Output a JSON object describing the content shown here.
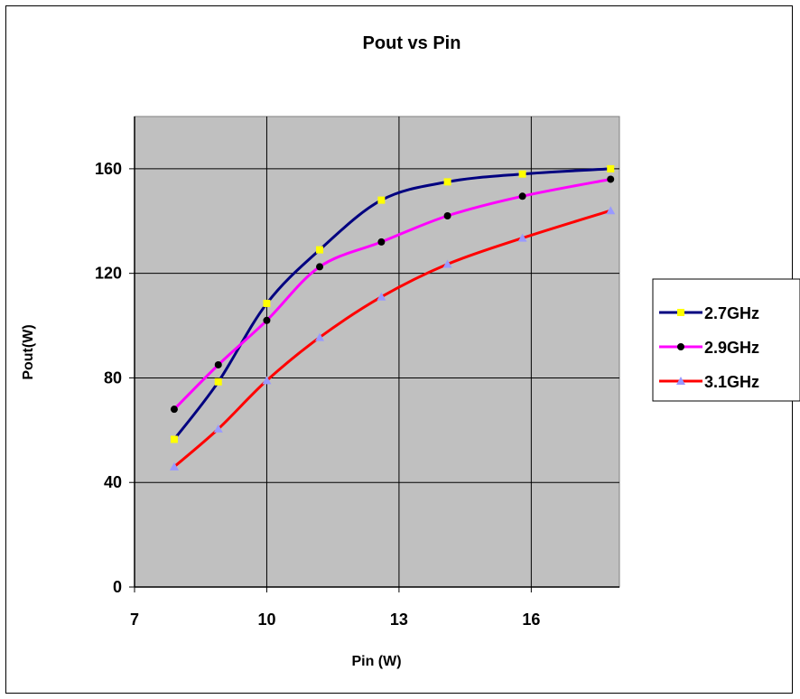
{
  "chart_data": {
    "type": "line",
    "title": "Pout vs Pin",
    "xlabel": "Pin (W)",
    "ylabel": "Pout(W)",
    "xlim": [
      7,
      18
    ],
    "ylim": [
      0,
      180
    ],
    "xticks": [
      7,
      10,
      13,
      16
    ],
    "yticks": [
      0,
      40,
      80,
      120,
      160
    ],
    "grid": true,
    "legend_position": "right",
    "plot_background": "#c0c0c0",
    "series": [
      {
        "name": "2.7GHz",
        "color": "#000080",
        "marker": "square",
        "marker_color": "#ffff00",
        "x": [
          7.9,
          8.9,
          10.0,
          11.2,
          12.6,
          14.1,
          15.8,
          17.8
        ],
        "y": [
          56.5,
          78.5,
          108.5,
          129,
          148,
          155,
          158,
          160
        ]
      },
      {
        "name": "2.9GHz",
        "color": "#ff00ff",
        "marker": "circle",
        "marker_color": "#000000",
        "x": [
          7.9,
          8.9,
          10.0,
          11.2,
          12.6,
          14.1,
          15.8,
          17.8
        ],
        "y": [
          68,
          85,
          102,
          122.5,
          132,
          142,
          149.5,
          156
        ]
      },
      {
        "name": "3.1GHz",
        "color": "#ff0000",
        "marker": "triangle",
        "marker_color": "#9999ff",
        "x": [
          7.9,
          8.9,
          10.0,
          11.2,
          12.6,
          14.1,
          15.8,
          17.8
        ],
        "y": [
          46,
          60.5,
          79,
          95.5,
          111,
          123.5,
          133.5,
          144
        ]
      }
    ]
  }
}
